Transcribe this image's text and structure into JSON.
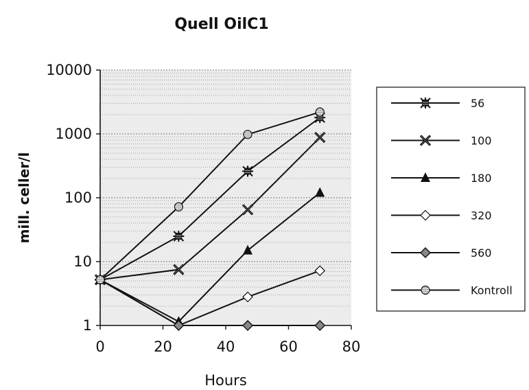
{
  "chart_data": {
    "type": "line",
    "title": "Quell OilC1",
    "xlabel": "Hours",
    "ylabel": "mill. celler/l",
    "xlim": [
      0,
      80
    ],
    "ylim": [
      1,
      10000
    ],
    "yscale": "log",
    "x_ticks": [
      "0",
      "20",
      "40",
      "60",
      "80"
    ],
    "y_ticks": [
      "1",
      "10",
      "100",
      "1000",
      "10000"
    ],
    "grid": "horizontal, dotted minor lines on gray background",
    "legend_position": "right",
    "series": [
      {
        "name": "56",
        "marker": "star",
        "x": [
          0,
          25,
          47,
          70
        ],
        "y": [
          5.2,
          25,
          260,
          1800
        ]
      },
      {
        "name": "100",
        "marker": "x-cross",
        "x": [
          0,
          25,
          47,
          70
        ],
        "y": [
          5.2,
          7.5,
          65,
          880
        ]
      },
      {
        "name": "180",
        "marker": "triangle",
        "x": [
          0,
          25,
          47,
          70
        ],
        "y": [
          5.2,
          1.15,
          15,
          120
        ]
      },
      {
        "name": "320",
        "marker": "diamond-open",
        "x": [
          0,
          25,
          47,
          70
        ],
        "y": [
          5.2,
          1.0,
          2.8,
          7.2
        ]
      },
      {
        "name": "560",
        "marker": "diamond-filled",
        "x": [
          0,
          25,
          47,
          70
        ],
        "y": [
          5.2,
          1.0,
          1.0,
          1.0
        ]
      },
      {
        "name": "Kontroll",
        "marker": "circle-hatched",
        "x": [
          0,
          25,
          47,
          70
        ],
        "y": [
          5.2,
          72,
          980,
          2200
        ]
      }
    ]
  }
}
